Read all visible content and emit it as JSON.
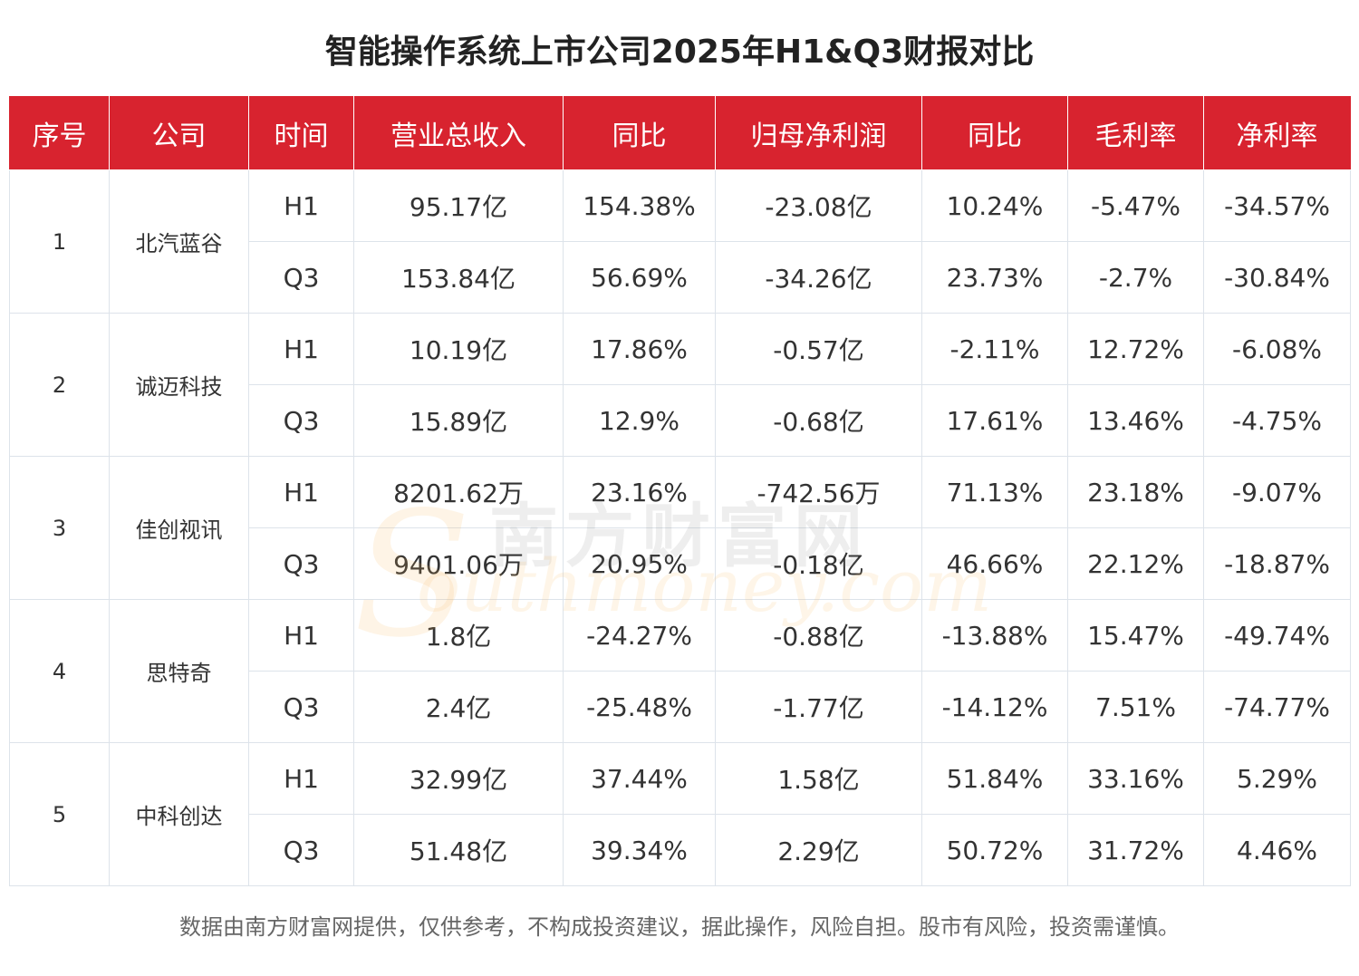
{
  "title": "智能操作系统上市公司2025年H1&Q3财报对比",
  "footer": "数据由南方财富网提供，仅供参考，不构成投资建议，据此操作，风险自担。股市有风险，投资需谨慎。",
  "watermark": {
    "cn": "南方财富网",
    "en": "outhmoney.com",
    "s": "S"
  },
  "colors": {
    "header_bg": "#d8232f",
    "border": "#dde3ea"
  },
  "chart_data": {
    "type": "table",
    "title": "智能操作系统上市公司2025年H1&Q3财报对比",
    "columns": [
      "序号",
      "公司",
      "时间",
      "营业总收入",
      "同比",
      "归母净利润",
      "同比",
      "毛利率",
      "净利率"
    ],
    "companies": [
      {
        "index": "1",
        "name": "北汽蓝谷",
        "rows": [
          [
            "H1",
            "95.17亿",
            "154.38%",
            "-23.08亿",
            "10.24%",
            "-5.47%",
            "-34.57%"
          ],
          [
            "Q3",
            "153.84亿",
            "56.69%",
            "-34.26亿",
            "23.73%",
            "-2.7%",
            "-30.84%"
          ]
        ]
      },
      {
        "index": "2",
        "name": "诚迈科技",
        "rows": [
          [
            "H1",
            "10.19亿",
            "17.86%",
            "-0.57亿",
            "-2.11%",
            "12.72%",
            "-6.08%"
          ],
          [
            "Q3",
            "15.89亿",
            "12.9%",
            "-0.68亿",
            "17.61%",
            "13.46%",
            "-4.75%"
          ]
        ]
      },
      {
        "index": "3",
        "name": "佳创视讯",
        "rows": [
          [
            "H1",
            "8201.62万",
            "23.16%",
            "-742.56万",
            "71.13%",
            "23.18%",
            "-9.07%"
          ],
          [
            "Q3",
            "9401.06万",
            "20.95%",
            "-0.18亿",
            "46.66%",
            "22.12%",
            "-18.87%"
          ]
        ]
      },
      {
        "index": "4",
        "name": "思特奇",
        "rows": [
          [
            "H1",
            "1.8亿",
            "-24.27%",
            "-0.88亿",
            "-13.88%",
            "15.47%",
            "-49.74%"
          ],
          [
            "Q3",
            "2.4亿",
            "-25.48%",
            "-1.77亿",
            "-14.12%",
            "7.51%",
            "-74.77%"
          ]
        ]
      },
      {
        "index": "5",
        "name": "中科创达",
        "rows": [
          [
            "H1",
            "32.99亿",
            "37.44%",
            "1.58亿",
            "51.84%",
            "33.16%",
            "5.29%"
          ],
          [
            "Q3",
            "51.48亿",
            "39.34%",
            "2.29亿",
            "50.72%",
            "31.72%",
            "4.46%"
          ]
        ]
      }
    ]
  }
}
